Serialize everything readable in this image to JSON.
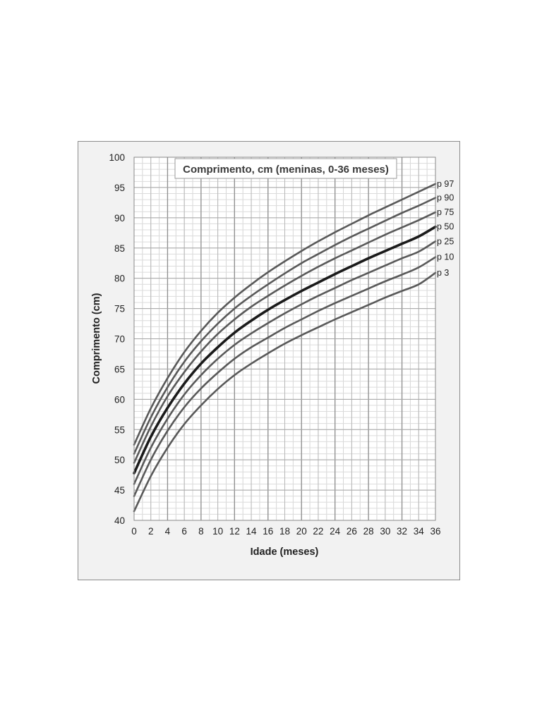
{
  "chart_data": {
    "type": "line",
    "title": "Comprimento, cm (meninas, 0-36 meses)",
    "xlabel": "Idade (meses)",
    "ylabel": "Comprimento (cm)",
    "xlim": [
      0,
      36
    ],
    "ylim": [
      40,
      100
    ],
    "x_ticks": [
      "0",
      "2",
      "4",
      "6",
      "8",
      "10",
      "12",
      "14",
      "16",
      "18",
      "20",
      "22",
      "24",
      "26",
      "28",
      "30",
      "32",
      "34",
      "36"
    ],
    "y_ticks": [
      "40",
      "45",
      "50",
      "55",
      "60",
      "65",
      "70",
      "75",
      "80",
      "85",
      "90",
      "95",
      "100"
    ],
    "grid": true,
    "x": [
      0,
      2,
      4,
      6,
      8,
      10,
      12,
      14,
      16,
      18,
      20,
      22,
      24,
      26,
      28,
      30,
      32,
      34,
      36
    ],
    "series": [
      {
        "name": "p 97",
        "values": [
          52.5,
          58.5,
          63.5,
          67.8,
          71.3,
          74.3,
          76.8,
          79.0,
          81.0,
          82.8,
          84.5,
          86.1,
          87.6,
          89.0,
          90.4,
          91.7,
          93.0,
          94.3,
          95.6
        ],
        "color": "#595959",
        "bold": false
      },
      {
        "name": "p 90",
        "values": [
          51.0,
          57.0,
          62.0,
          66.2,
          69.6,
          72.5,
          75.0,
          77.1,
          79.0,
          80.8,
          82.5,
          84.0,
          85.5,
          86.9,
          88.2,
          89.5,
          90.8,
          92.0,
          93.3
        ],
        "color": "#595959",
        "bold": false
      },
      {
        "name": "p 75",
        "values": [
          49.5,
          55.5,
          60.5,
          64.5,
          67.9,
          70.8,
          73.2,
          75.3,
          77.1,
          78.8,
          80.4,
          81.9,
          83.3,
          84.6,
          85.9,
          87.2,
          88.4,
          89.6,
          90.9
        ],
        "color": "#595959",
        "bold": false
      },
      {
        "name": "p 50",
        "values": [
          47.8,
          53.8,
          58.6,
          62.6,
          65.9,
          68.6,
          71.0,
          73.0,
          74.8,
          76.4,
          77.9,
          79.3,
          80.7,
          82.0,
          83.3,
          84.5,
          85.7,
          86.9,
          88.5
        ],
        "color": "#1a1a1a",
        "bold": true
      },
      {
        "name": "p 25",
        "values": [
          46.0,
          52.0,
          56.8,
          60.8,
          64.0,
          66.7,
          69.0,
          70.9,
          72.6,
          74.2,
          75.7,
          77.1,
          78.4,
          79.7,
          80.9,
          82.1,
          83.3,
          84.4,
          86.1
        ],
        "color": "#595959",
        "bold": false
      },
      {
        "name": "p 10",
        "values": [
          44.0,
          50.0,
          54.8,
          58.7,
          61.8,
          64.4,
          66.7,
          68.6,
          70.2,
          71.8,
          73.2,
          74.6,
          75.9,
          77.1,
          78.3,
          79.5,
          80.6,
          81.8,
          83.5
        ],
        "color": "#595959",
        "bold": false
      },
      {
        "name": "p 3",
        "values": [
          41.5,
          47.3,
          52.0,
          55.9,
          59.0,
          61.7,
          64.0,
          65.9,
          67.6,
          69.2,
          70.6,
          71.9,
          73.2,
          74.4,
          75.6,
          76.8,
          77.9,
          79.0,
          80.9
        ],
        "color": "#595959",
        "bold": false
      }
    ]
  }
}
